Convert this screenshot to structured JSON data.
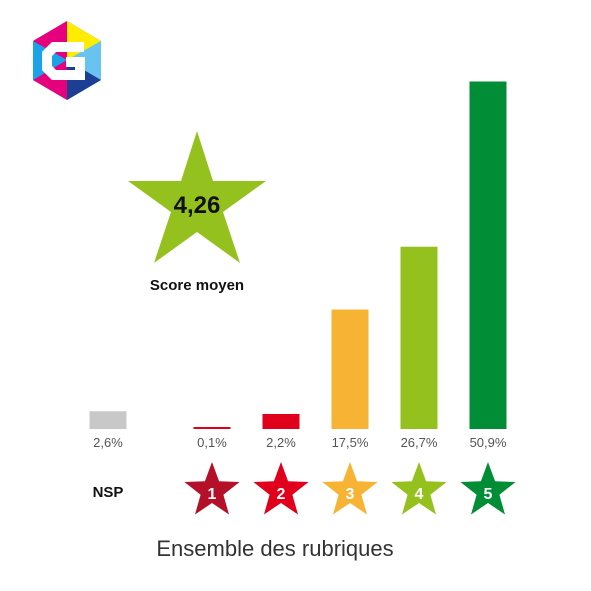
{
  "chart_data": {
    "type": "bar",
    "categories": [
      "NSP",
      "1",
      "2",
      "3",
      "4",
      "5"
    ],
    "values": [
      2.6,
      0.1,
      2.2,
      17.5,
      26.7,
      50.9
    ],
    "value_labels": [
      "2,6%",
      "0,1%",
      "2,2%",
      "17,5%",
      "26,7%",
      "50,9%"
    ],
    "colors": [
      "#c8c8c8",
      "#e0001b",
      "#e0001b",
      "#f7b334",
      "#95c11f",
      "#008d36"
    ],
    "star_colors": [
      "",
      "#b5102a",
      "#e0001b",
      "#f7b334",
      "#95c11f",
      "#008d36"
    ],
    "nsp_label": "NSP",
    "ylim": [
      0,
      52
    ],
    "score": {
      "value": "4,26",
      "label": "Score moyen",
      "color": "#95c11f"
    },
    "caption": "Ensemble des rubriques"
  }
}
